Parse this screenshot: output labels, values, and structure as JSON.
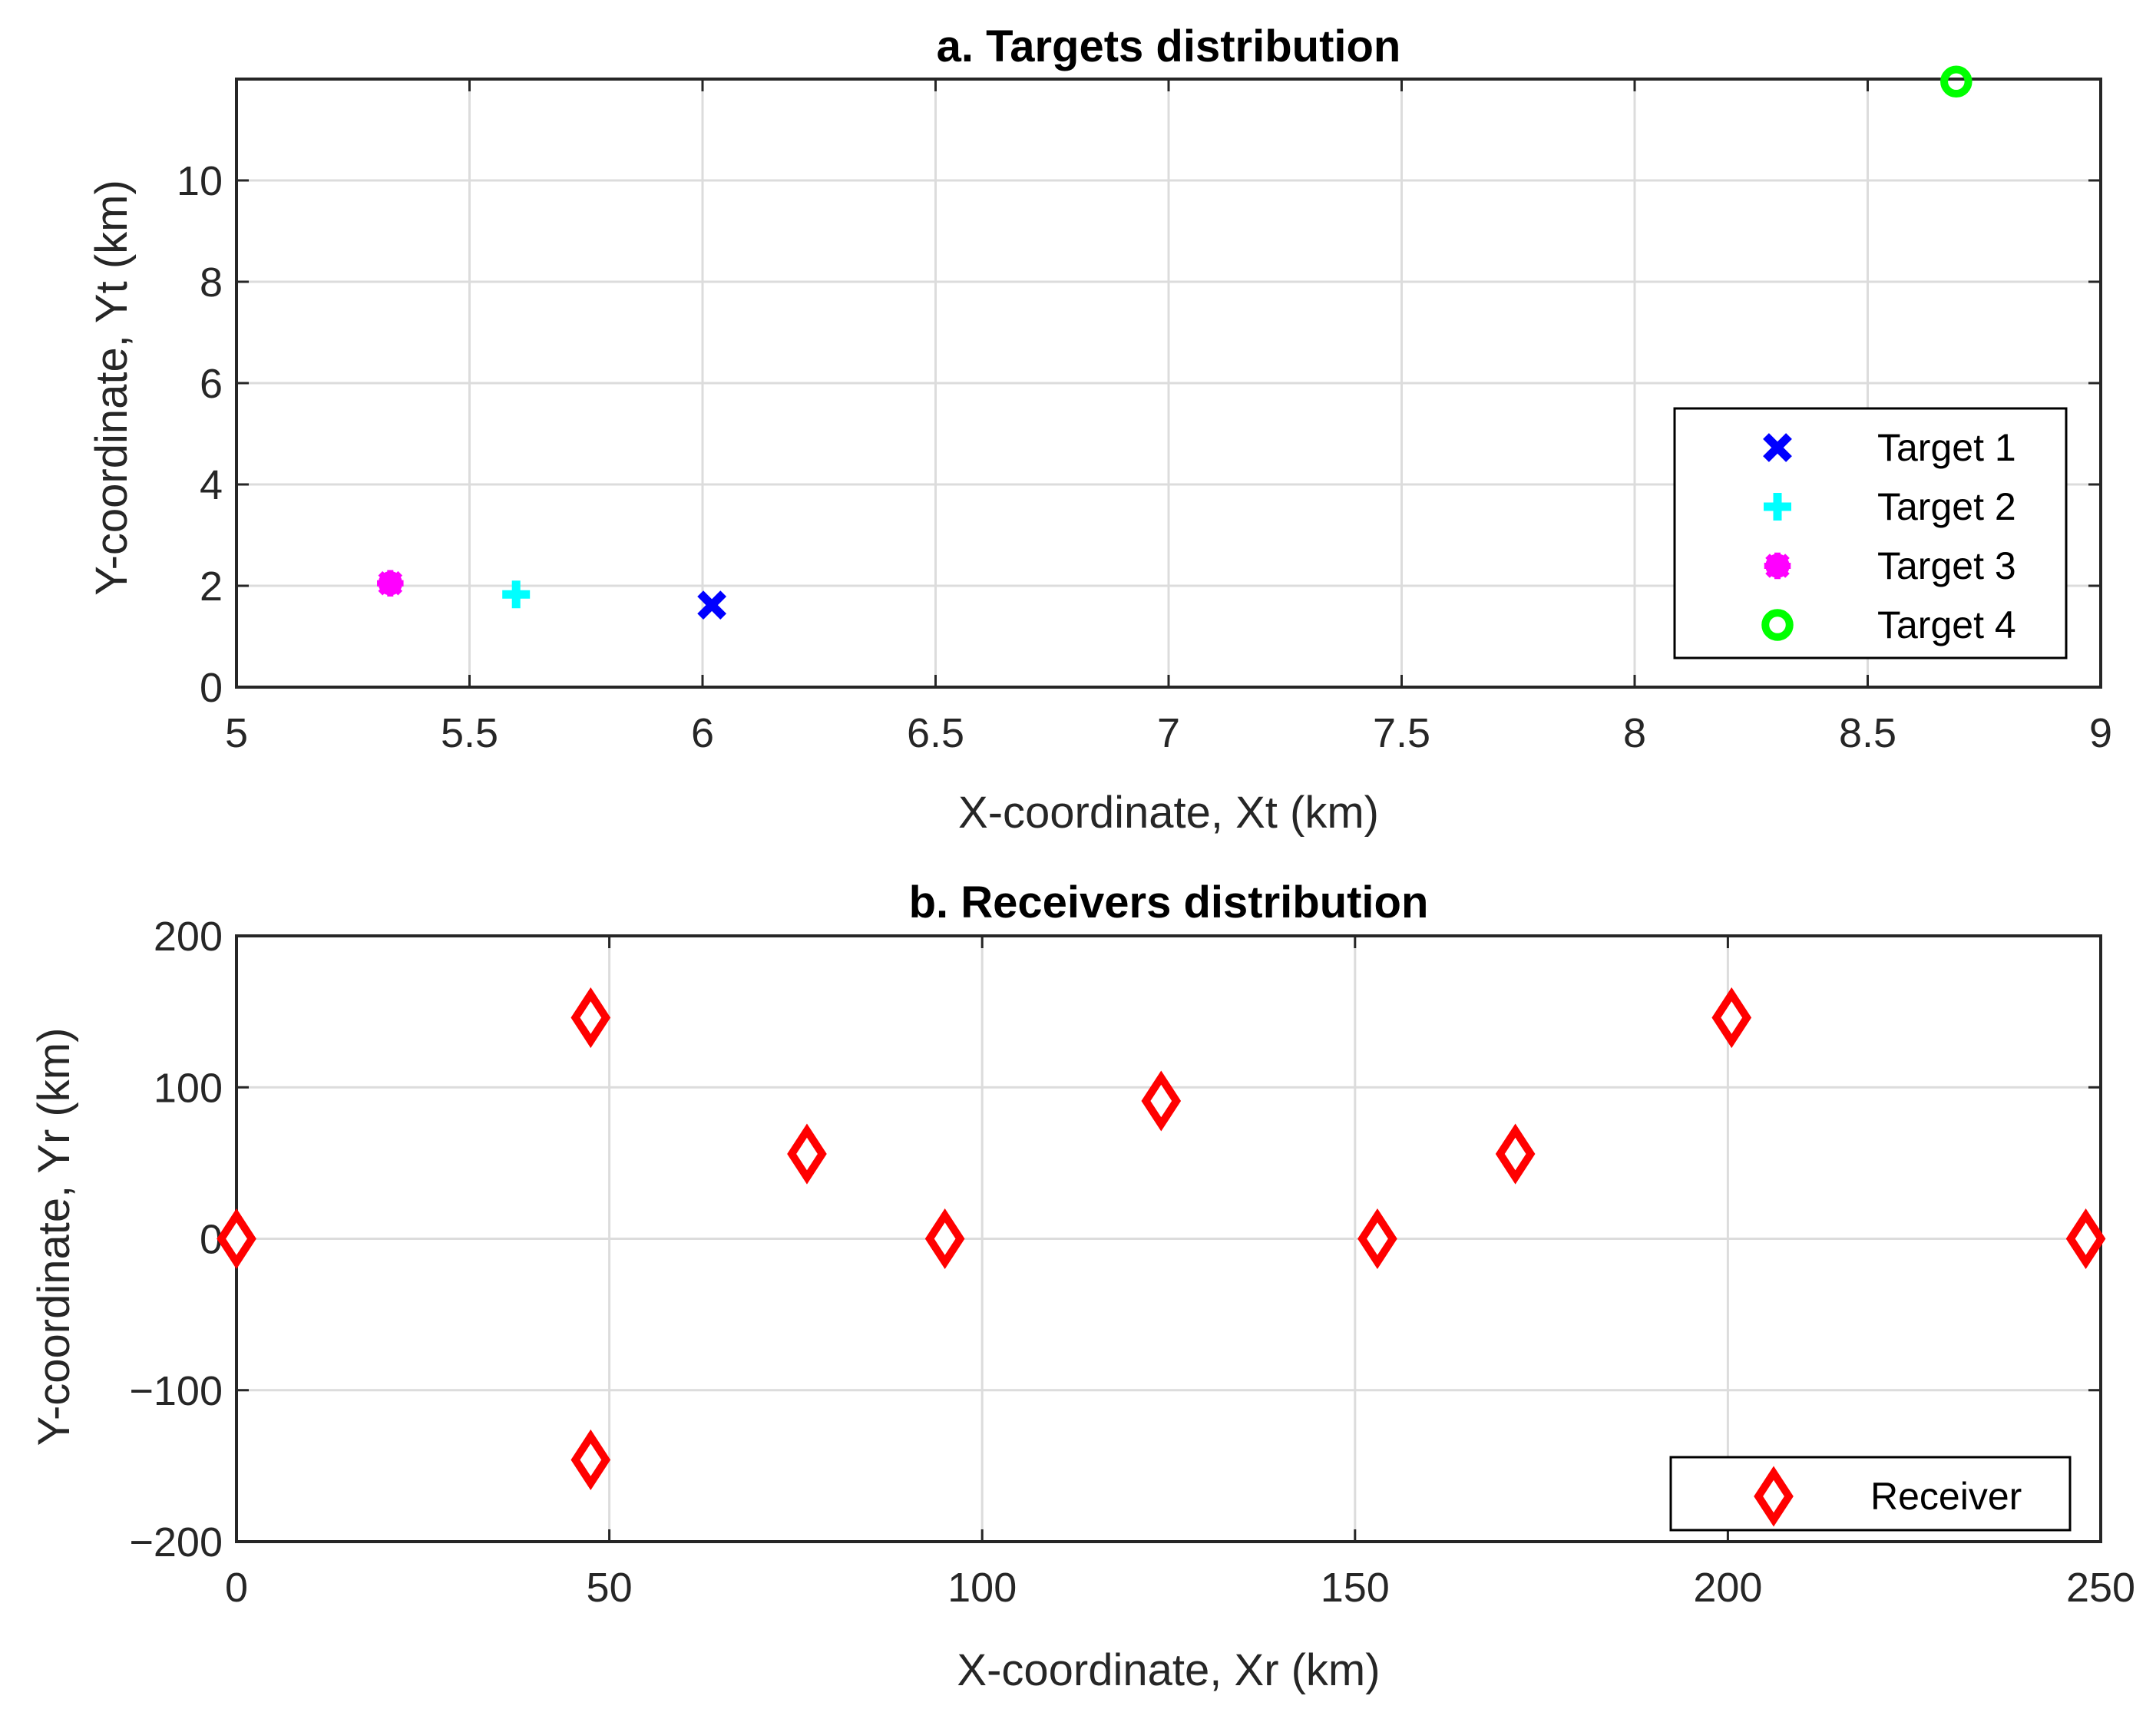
{
  "chart_data": [
    {
      "type": "scatter",
      "title": "a. Targets distribution",
      "xlabel": "X-coordinate, Xt (km)",
      "ylabel": "Y-coordinate, Yt (km)",
      "xlim": [
        5,
        9
      ],
      "ylim": [
        0,
        12
      ],
      "xticks": [
        5,
        5.5,
        6,
        6.5,
        7,
        7.5,
        8,
        8.5,
        9
      ],
      "xtick_labels": [
        "5",
        "5.5",
        "6",
        "6.5",
        "7",
        "7.5",
        "8",
        "8.5",
        "9"
      ],
      "yticks": [
        0,
        2,
        4,
        6,
        8,
        10
      ],
      "ytick_labels": [
        "0",
        "2",
        "4",
        "6",
        "8",
        "10"
      ],
      "grid": true,
      "legend_position": "bottom-right",
      "series": [
        {
          "name": "Target 1",
          "marker": "x",
          "color": "#0000ff",
          "x": [
            6.02
          ],
          "y": [
            1.62
          ]
        },
        {
          "name": "Target 2",
          "marker": "plus",
          "color": "#00ffff",
          "x": [
            5.6
          ],
          "y": [
            1.83
          ]
        },
        {
          "name": "Target 3",
          "marker": "asterisk",
          "color": "#ff00ff",
          "x": [
            5.33
          ],
          "y": [
            2.05
          ]
        },
        {
          "name": "Target 4",
          "marker": "circle",
          "color": "#00ff00",
          "x": [
            8.69
          ],
          "y": [
            11.95
          ]
        }
      ]
    },
    {
      "type": "scatter",
      "title": "b. Receivers distribution",
      "xlabel": "X-coordinate, Xr (km)",
      "ylabel": "Y-coordinate, Yr (km)",
      "xlim": [
        0,
        250
      ],
      "ylim": [
        -200,
        200
      ],
      "xticks": [
        0,
        50,
        100,
        150,
        200,
        250
      ],
      "xtick_labels": [
        "0",
        "50",
        "100",
        "150",
        "200",
        "250"
      ],
      "yticks": [
        -200,
        -100,
        0,
        100,
        200
      ],
      "ytick_labels": [
        "−200",
        "−100",
        "0",
        "100",
        "200"
      ],
      "grid": true,
      "legend_position": "bottom-right",
      "series": [
        {
          "name": "Receiver",
          "marker": "diamond",
          "color": "#ff0000",
          "x": [
            0,
            47.5,
            47.5,
            76.5,
            95,
            124,
            153,
            171.5,
            200.5,
            248
          ],
          "y": [
            0,
            146,
            -146,
            56,
            0,
            91,
            0,
            56,
            146,
            0
          ]
        }
      ]
    }
  ]
}
